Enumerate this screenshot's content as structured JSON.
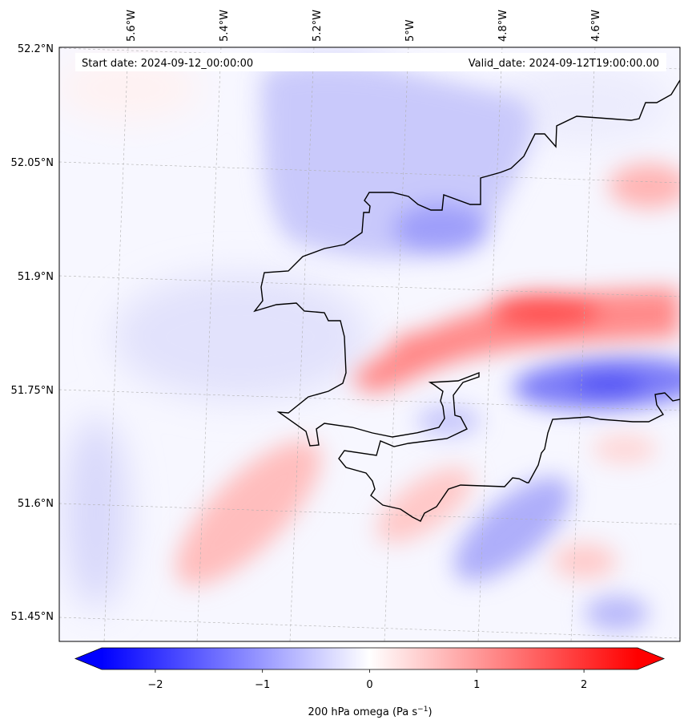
{
  "header": {
    "start_text": "Start date: 2024-09-12_00:00:00",
    "valid_text": "Valid_date: 2024-09-12T19:00:00.00"
  },
  "axes": {
    "lon_labels": [
      "5.6°W",
      "5.4°W",
      "5.2°W",
      "5°W",
      "4.8°W",
      "4.6°W"
    ],
    "lat_labels": [
      "52.2°N",
      "52.05°N",
      "51.9°N",
      "51.75°N",
      "51.6°N",
      "51.45°N"
    ]
  },
  "colorbar": {
    "label_text": "200 hPa omega (Pa s",
    "label_exponent": "−1",
    "label_tail": ")",
    "ticks": [
      "−2",
      "−1",
      "0",
      "1",
      "2"
    ],
    "vmin": -2.5,
    "vmax": 2.5
  },
  "colors": {
    "negative": "#0000ff",
    "zero": "#ffffff",
    "positive": "#ff0000",
    "coastline": "#000000"
  },
  "omega_features": [
    {
      "name": "ascent-band-north",
      "sign": "negative",
      "peak": -0.9
    },
    {
      "name": "strong-ascent-east",
      "sign": "negative",
      "peak": -1.5
    },
    {
      "name": "strong-descent-ridge",
      "sign": "positive",
      "peak": 1.7
    },
    {
      "name": "descent-southwest",
      "sign": "positive",
      "peak": 0.6
    },
    {
      "name": "ascent-southeast",
      "sign": "negative",
      "peak": -0.8
    }
  ]
}
